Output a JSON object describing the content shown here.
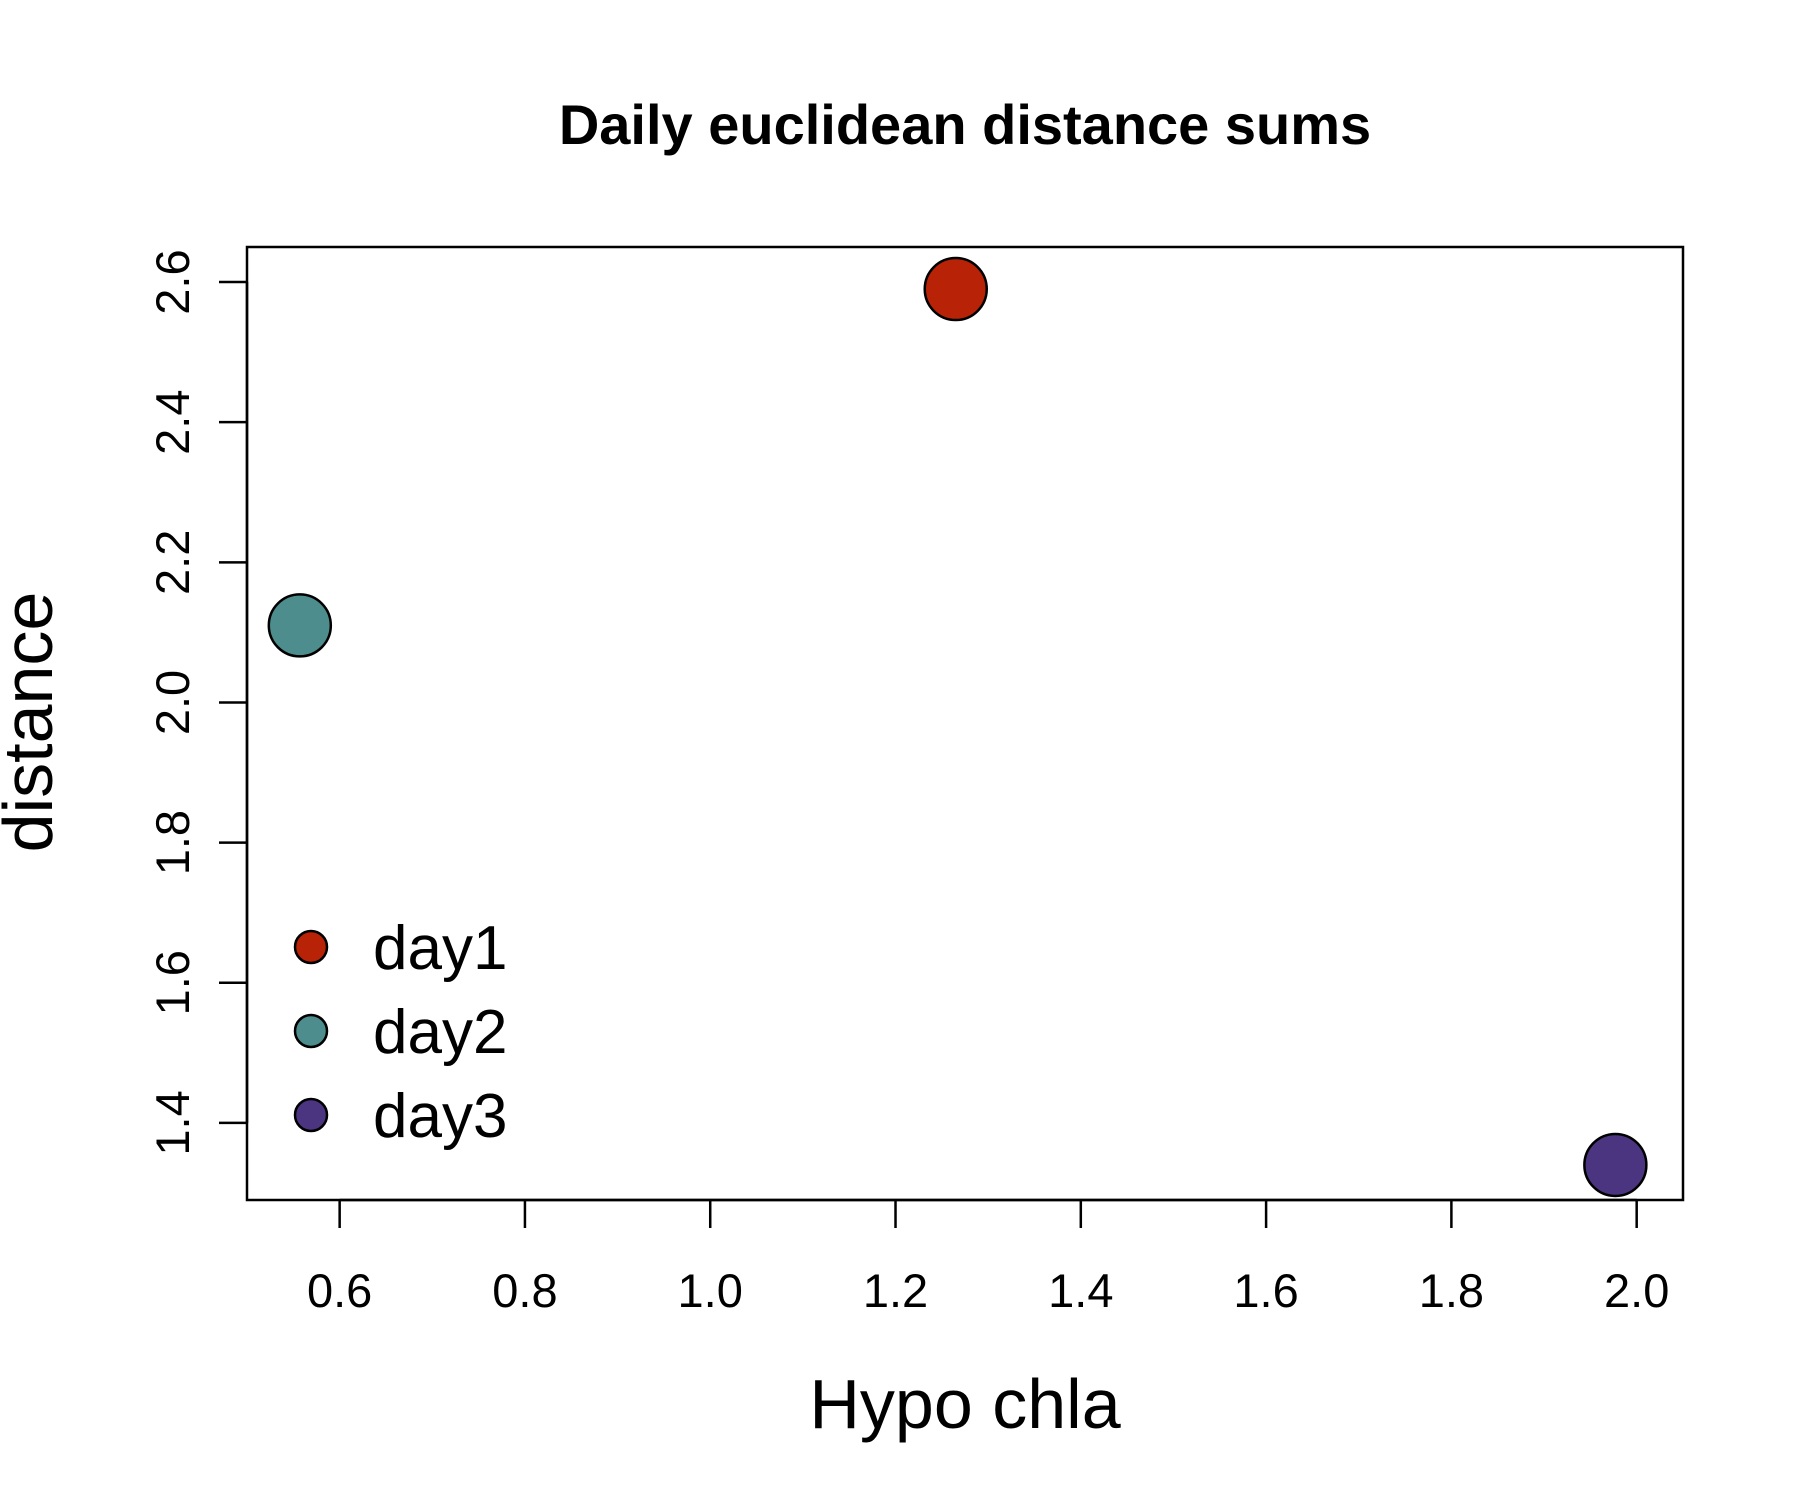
{
  "chart_data": {
    "type": "scatter",
    "title": "Daily euclidean distance sums",
    "xlabel": "Hypo chla",
    "ylabel": "distance",
    "xlim": [
      0.5,
      2.05
    ],
    "ylim": [
      1.29,
      2.65
    ],
    "xticks": [
      0.6,
      0.8,
      1.0,
      1.2,
      1.4,
      1.6,
      1.8,
      2.0
    ],
    "xtick_labels": [
      "0.6",
      "0.8",
      "1.0",
      "1.2",
      "1.4",
      "1.6",
      "1.8",
      "2.0"
    ],
    "yticks": [
      1.4,
      1.6,
      1.8,
      2.0,
      2.2,
      2.4,
      2.6
    ],
    "ytick_labels": [
      "1.4",
      "1.6",
      "1.8",
      "2.0",
      "2.2",
      "2.4",
      "2.6"
    ],
    "grid": false,
    "legend_position": "bottom-left",
    "series": [
      {
        "name": "day1",
        "color": "#B82207",
        "points": [
          {
            "x": 1.265,
            "y": 2.59
          }
        ]
      },
      {
        "name": "day2",
        "color": "#4E8D8D",
        "points": [
          {
            "x": 0.557,
            "y": 2.11
          }
        ]
      },
      {
        "name": "day3",
        "color": "#4B3580",
        "points": [
          {
            "x": 1.977,
            "y": 1.34
          }
        ]
      }
    ]
  }
}
